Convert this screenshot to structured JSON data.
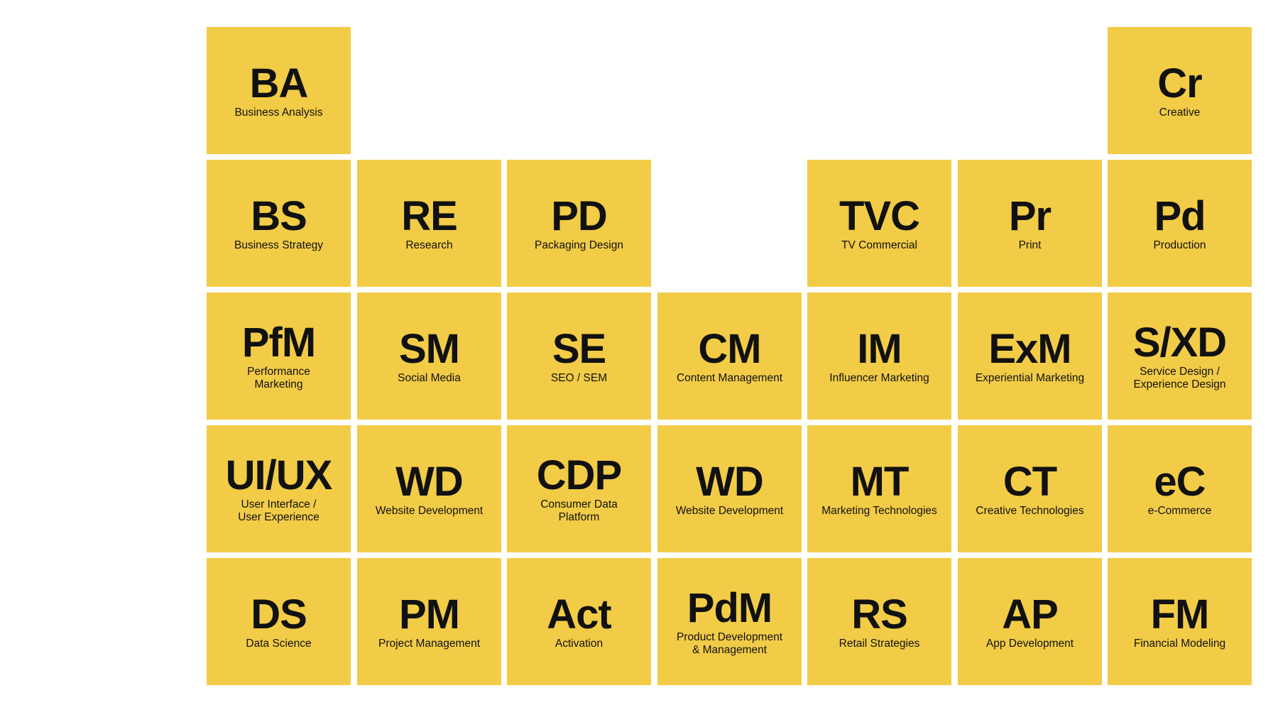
{
  "colors": {
    "tile": "#f2cc47",
    "text": "#111111",
    "background": "#ffffff"
  },
  "tiles": [
    {
      "id": "ba",
      "row": 0,
      "col": 0,
      "symbol": "BA",
      "name": "Business Analysis"
    },
    {
      "id": "cr",
      "row": 0,
      "col": 6,
      "symbol": "Cr",
      "name": "Creative"
    },
    {
      "id": "bs",
      "row": 1,
      "col": 0,
      "symbol": "BS",
      "name": "Business Strategy"
    },
    {
      "id": "re",
      "row": 1,
      "col": 1,
      "symbol": "RE",
      "name": "Research"
    },
    {
      "id": "pd",
      "row": 1,
      "col": 2,
      "symbol": "PD",
      "name": "Packaging Design"
    },
    {
      "id": "tvc",
      "row": 1,
      "col": 4,
      "symbol": "TVC",
      "name": "TV Commercial"
    },
    {
      "id": "pr",
      "row": 1,
      "col": 5,
      "symbol": "Pr",
      "name": "Print"
    },
    {
      "id": "pd2",
      "row": 1,
      "col": 6,
      "symbol": "Pd",
      "name": "Production"
    },
    {
      "id": "pfm",
      "row": 2,
      "col": 0,
      "symbol": "PfM",
      "name": "Performance\nMarketing"
    },
    {
      "id": "sm",
      "row": 2,
      "col": 1,
      "symbol": "SM",
      "name": "Social Media"
    },
    {
      "id": "se",
      "row": 2,
      "col": 2,
      "symbol": "SE",
      "name": "SEO / SEM"
    },
    {
      "id": "cm",
      "row": 2,
      "col": 3,
      "symbol": "CM",
      "name": "Content Management"
    },
    {
      "id": "im",
      "row": 2,
      "col": 4,
      "symbol": "IM",
      "name": "Influencer Marketing"
    },
    {
      "id": "exm",
      "row": 2,
      "col": 5,
      "symbol": "ExM",
      "name": "Experiential Marketing"
    },
    {
      "id": "sxd",
      "row": 2,
      "col": 6,
      "symbol": "S/XD",
      "name": "Service Design /\nExperience Design"
    },
    {
      "id": "uiux",
      "row": 3,
      "col": 0,
      "symbol": "UI/UX",
      "name": "User Interface /\nUser Experience"
    },
    {
      "id": "wd1",
      "row": 3,
      "col": 1,
      "symbol": "WD",
      "name": "Website Development"
    },
    {
      "id": "cdp",
      "row": 3,
      "col": 2,
      "symbol": "CDP",
      "name": "Consumer Data\nPlatform"
    },
    {
      "id": "wd2",
      "row": 3,
      "col": 3,
      "symbol": "WD",
      "name": "Website Development"
    },
    {
      "id": "mt",
      "row": 3,
      "col": 4,
      "symbol": "MT",
      "name": "Marketing Technologies"
    },
    {
      "id": "ct",
      "row": 3,
      "col": 5,
      "symbol": "CT",
      "name": "Creative Technologies"
    },
    {
      "id": "ec",
      "row": 3,
      "col": 6,
      "symbol": "eC",
      "name": "e-Commerce"
    },
    {
      "id": "ds",
      "row": 4,
      "col": 0,
      "symbol": "DS",
      "name": "Data Science"
    },
    {
      "id": "pm",
      "row": 4,
      "col": 1,
      "symbol": "PM",
      "name": "Project Management"
    },
    {
      "id": "act",
      "row": 4,
      "col": 2,
      "symbol": "Act",
      "name": "Activation"
    },
    {
      "id": "pdm",
      "row": 4,
      "col": 3,
      "symbol": "PdM",
      "name": "Product Development\n& Management"
    },
    {
      "id": "rs",
      "row": 4,
      "col": 4,
      "symbol": "RS",
      "name": "Retail Strategies"
    },
    {
      "id": "ap",
      "row": 4,
      "col": 5,
      "symbol": "AP",
      "name": "App Development"
    },
    {
      "id": "fm",
      "row": 4,
      "col": 6,
      "symbol": "FM",
      "name": "Financial Modeling"
    }
  ]
}
